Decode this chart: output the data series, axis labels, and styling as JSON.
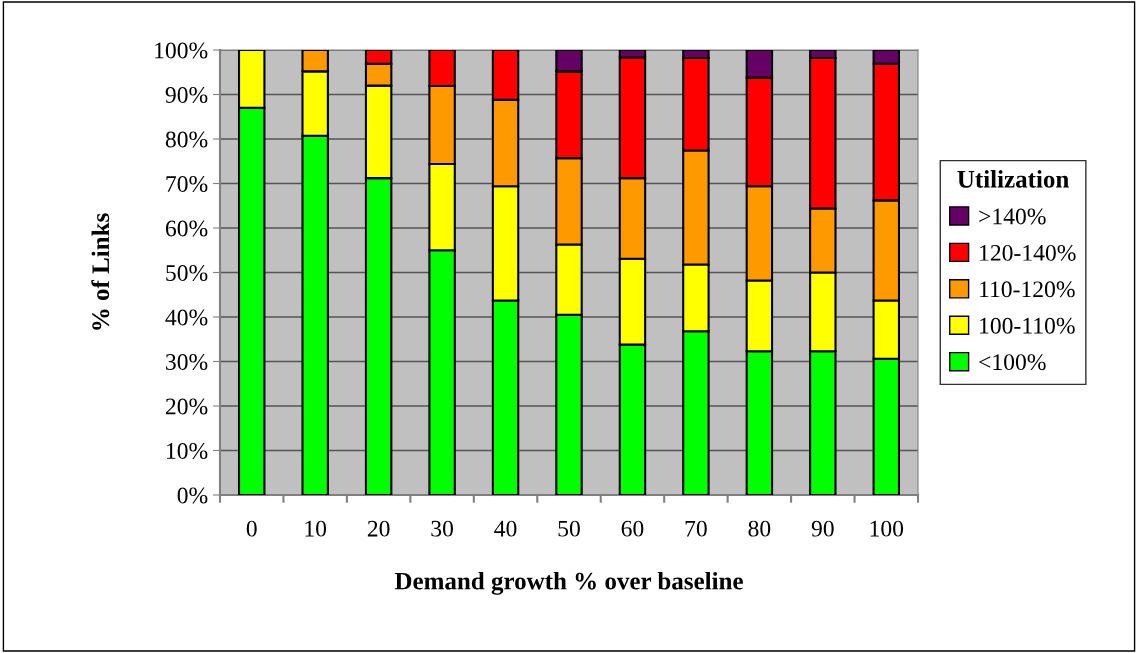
{
  "chart_data": {
    "type": "bar",
    "stacked": true,
    "xlabel": "Demand growth % over baseline",
    "ylabel": "% of Links",
    "legend_title": "Utilization",
    "legend": "right",
    "grid": "y",
    "categories": [
      "0",
      "10",
      "20",
      "30",
      "40",
      "50",
      "60",
      "70",
      "80",
      "90",
      "100"
    ],
    "ylim": [
      0,
      100
    ],
    "yticks": [
      {
        "value": 0,
        "label": "0%"
      },
      {
        "value": 10,
        "label": "10%"
      },
      {
        "value": 20,
        "label": "20%"
      },
      {
        "value": 30,
        "label": "30%"
      },
      {
        "value": 40,
        "label": "40%"
      },
      {
        "value": 50,
        "label": "50%"
      },
      {
        "value": 60,
        "label": "60%"
      },
      {
        "value": 70,
        "label": "70%"
      },
      {
        "value": 80,
        "label": "80%"
      },
      {
        "value": 90,
        "label": "90%"
      },
      {
        "value": 100,
        "label": "100%"
      }
    ],
    "series": [
      {
        "name": "<100%",
        "color": "#00ff00",
        "values": [
          87,
          80.7,
          71.2,
          55,
          43.7,
          40.5,
          33.8,
          36.8,
          32.3,
          32.3,
          30.6
        ]
      },
      {
        "name": "100-110%",
        "color": "#ffff00",
        "values": [
          13,
          14.5,
          20.8,
          19.4,
          25.7,
          15.8,
          19.3,
          15,
          15.9,
          17.7,
          13.1
        ]
      },
      {
        "name": "110-120%",
        "color": "#ff9900",
        "values": [
          null,
          4.8,
          4.9,
          17.5,
          19.4,
          19.4,
          18.1,
          25.6,
          21.2,
          14.4,
          22.5
        ]
      },
      {
        "name": "120-140%",
        "color": "#ff0000",
        "values": [
          null,
          null,
          3.1,
          8.1,
          11.2,
          19.5,
          27.1,
          20.8,
          24.4,
          33.8,
          30.7
        ]
      },
      {
        "name": ">140%",
        "color": "#660066",
        "values": [
          null,
          null,
          null,
          null,
          null,
          4.8,
          1.7,
          1.8,
          6.2,
          1.8,
          3.1
        ]
      }
    ]
  }
}
